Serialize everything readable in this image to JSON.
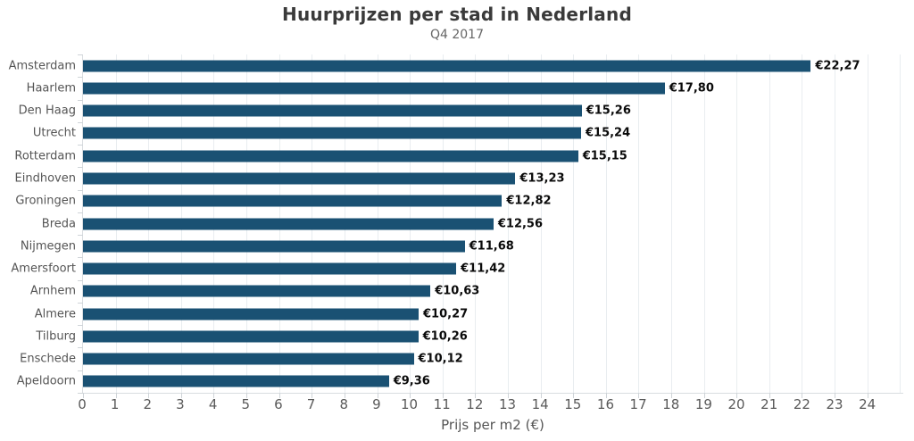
{
  "header": {
    "title": "Huurprijzen per stad in Nederland",
    "subtitle": "Q4 2017"
  },
  "chart_data": {
    "type": "bar",
    "orientation": "horizontal",
    "title": "Huurprijzen per stad in Nederland",
    "subtitle": "Q4 2017",
    "categories": [
      "Amsterdam",
      "Haarlem",
      "Den Haag",
      "Utrecht",
      "Rotterdam",
      "Eindhoven",
      "Groningen",
      "Breda",
      "Nijmegen",
      "Amersfoort",
      "Arnhem",
      "Almere",
      "Tilburg",
      "Enschede",
      "Apeldoorn"
    ],
    "values": [
      22.27,
      17.8,
      15.26,
      15.24,
      15.15,
      13.23,
      12.82,
      12.56,
      11.68,
      11.42,
      10.63,
      10.27,
      10.26,
      10.12,
      9.36
    ],
    "value_labels": [
      "€22,27",
      "€17,80",
      "€15,26",
      "€15,24",
      "€15,15",
      "€13,23",
      "€12,82",
      "€12,56",
      "€11,68",
      "€11,42",
      "€10,63",
      "€10,27",
      "€10,26",
      "€10,12",
      "€9,36"
    ],
    "xlabel": "Prijs per m2 (€)",
    "xlim": [
      0,
      25.1
    ],
    "xticks": [
      0,
      1,
      2,
      3,
      4,
      5,
      6,
      7,
      8,
      9,
      10,
      11,
      12,
      13,
      14,
      15,
      16,
      17,
      18,
      19,
      20,
      21,
      22,
      23,
      24
    ],
    "gridline_values": [
      1,
      2,
      3,
      4,
      5,
      6,
      7,
      8,
      9,
      10,
      11,
      12,
      13,
      14,
      15,
      16,
      17,
      18,
      19,
      20,
      21,
      22,
      23,
      24,
      25
    ],
    "grid": true,
    "legend": false,
    "colors": {
      "bar": "#1a5173",
      "grid": "#e9edf0",
      "axis_line": "#d9dde0",
      "title_text": "#3a3a3a",
      "subtitle_text": "#666666",
      "category_text": "#555555",
      "value_text": "#0a0a0a",
      "tick_text": "#5a5a5a"
    }
  }
}
